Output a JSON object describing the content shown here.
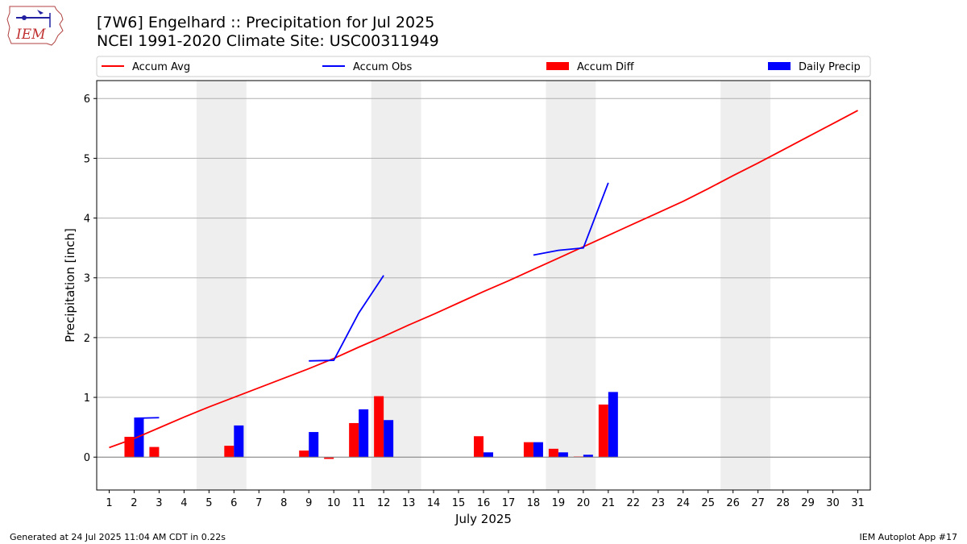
{
  "logo_text": "IEM",
  "titles": {
    "line1": "[7W6] Engelhard :: Precipitation for Jul 2025",
    "line2": "NCEI 1991-2020 Climate Site: USC00311949"
  },
  "footer": {
    "left": "Generated at 24 Jul 2025 11:04 AM CDT in 0.22s",
    "right": "IEM Autoplot App #17"
  },
  "colors": {
    "avg": "#ff0000",
    "obs": "#0000ff",
    "diff": "#ff0000",
    "daily": "#0000ff",
    "weekend": "#eeeeee",
    "grid": "#b0b0b0"
  },
  "chart_data": {
    "type": "bar",
    "title": "[7W6] Engelhard :: Precipitation for Jul 2025",
    "xlabel": "July 2025",
    "ylabel": "Precipitation [inch]",
    "xlim": [
      0.5,
      31.5
    ],
    "ylim": [
      -0.55,
      6.3
    ],
    "yticks": [
      0,
      1,
      2,
      3,
      4,
      5,
      6
    ],
    "x": [
      1,
      2,
      3,
      4,
      5,
      6,
      7,
      8,
      9,
      10,
      11,
      12,
      13,
      14,
      15,
      16,
      17,
      18,
      19,
      20,
      21,
      22,
      23,
      24,
      25,
      26,
      27,
      28,
      29,
      30,
      31
    ],
    "weekend_spans": [
      [
        4.5,
        6.5
      ],
      [
        11.5,
        13.5
      ],
      [
        18.5,
        20.5
      ],
      [
        25.5,
        27.5
      ]
    ],
    "legend": [
      "Accum Avg",
      "Accum Obs",
      "Accum Diff",
      "Daily Precip"
    ],
    "legend_position": "top",
    "series": [
      {
        "name": "Accum Avg",
        "kind": "line",
        "color": "#ff0000",
        "x": [
          1,
          2,
          3,
          4,
          5,
          6,
          7,
          8,
          9,
          10,
          11,
          12,
          13,
          14,
          15,
          16,
          17,
          18,
          19,
          20,
          21,
          22,
          23,
          24,
          25,
          26,
          27,
          28,
          29,
          30,
          31
        ],
        "values": [
          0.16,
          0.31,
          0.49,
          0.67,
          0.84,
          1.0,
          1.16,
          1.32,
          1.48,
          1.65,
          1.84,
          2.02,
          2.21,
          2.39,
          2.58,
          2.77,
          2.95,
          3.14,
          3.33,
          3.52,
          3.71,
          3.9,
          4.09,
          4.28,
          4.49,
          4.71,
          4.92,
          5.14,
          5.36,
          5.58,
          5.8
        ]
      },
      {
        "name": "Accum Obs",
        "kind": "line",
        "color": "#0000ff",
        "segments": [
          {
            "x": [
              2,
              3
            ],
            "values": [
              0.65,
              0.66
            ]
          },
          {
            "x": [
              9,
              10,
              11,
              12
            ],
            "values": [
              1.61,
              1.62,
              2.41,
              3.04
            ]
          },
          {
            "x": [
              18,
              19,
              20,
              21
            ],
            "values": [
              3.38,
              3.46,
              3.5,
              4.59
            ]
          }
        ]
      },
      {
        "name": "Accum Diff",
        "kind": "bar",
        "color": "#ff0000",
        "x": [
          2,
          3,
          6,
          9,
          10,
          11,
          12,
          16,
          18,
          19,
          20,
          21
        ],
        "values": [
          0.34,
          0.17,
          0.19,
          0.11,
          -0.03,
          0.57,
          1.02,
          0.35,
          0.25,
          0.14,
          0.01,
          0.88
        ]
      },
      {
        "name": "Daily Precip",
        "kind": "bar",
        "color": "#0000ff",
        "x": [
          2,
          6,
          9,
          11,
          12,
          16,
          18,
          19,
          20,
          21
        ],
        "values": [
          0.65,
          0.53,
          0.42,
          0.8,
          0.62,
          0.08,
          0.25,
          0.08,
          0.04,
          1.09
        ]
      }
    ]
  }
}
